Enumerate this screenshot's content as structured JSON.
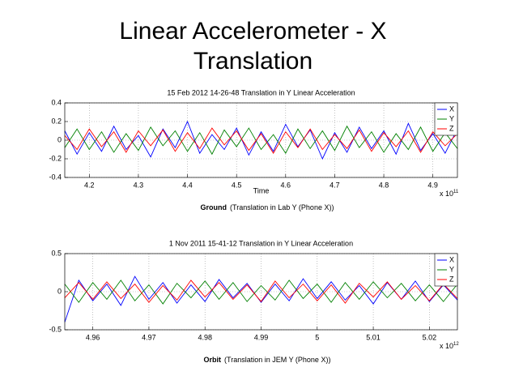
{
  "title": "Linear Accelerometer - X Translation",
  "chart_data": [
    {
      "type": "line",
      "title": "15 Feb 2012 14-26-48 Translation in Y Linear Acceleration",
      "xlabel": "Time",
      "x_multiplier": "x 10",
      "x_exponent": 11,
      "caption": {
        "bold": "Ground",
        "text": "(Translation in Lab Y (Phone X))"
      },
      "x": [
        4.15,
        4.175,
        4.2,
        4.225,
        4.25,
        4.275,
        4.3,
        4.325,
        4.35,
        4.375,
        4.4,
        4.425,
        4.45,
        4.475,
        4.5,
        4.525,
        4.55,
        4.575,
        4.6,
        4.625,
        4.65,
        4.675,
        4.7,
        4.725,
        4.75,
        4.775,
        4.8,
        4.825,
        4.85,
        4.875,
        4.9,
        4.925,
        4.95
      ],
      "series": [
        {
          "name": "X",
          "color": "#0000ff",
          "values": [
            0.1,
            -0.15,
            0.08,
            -0.12,
            0.15,
            -0.1,
            0.05,
            -0.18,
            0.12,
            -0.08,
            0.2,
            -0.14,
            0.06,
            -0.1,
            0.13,
            -0.16,
            0.09,
            -0.12,
            0.17,
            -0.07,
            0.11,
            -0.2,
            0.08,
            -0.13,
            0.14,
            -0.09,
            0.1,
            -0.15,
            0.18,
            -0.11,
            0.07,
            -0.14,
            0.12
          ]
        },
        {
          "name": "Y",
          "color": "#008000",
          "values": [
            -0.08,
            0.12,
            -0.1,
            0.09,
            -0.13,
            0.07,
            -0.11,
            0.14,
            -0.06,
            0.1,
            -0.12,
            0.08,
            -0.15,
            0.11,
            -0.07,
            0.13,
            -0.1,
            0.06,
            -0.14,
            0.12,
            -0.09,
            0.1,
            -0.11,
            0.15,
            -0.08,
            0.09,
            -0.13,
            0.07,
            -0.1,
            0.14,
            -0.12,
            0.08,
            -0.09
          ]
        },
        {
          "name": "Z",
          "color": "#ff0000",
          "values": [
            0.05,
            -0.1,
            0.12,
            -0.07,
            0.09,
            -0.13,
            0.1,
            -0.06,
            0.11,
            -0.12,
            0.08,
            -0.09,
            0.13,
            -0.05,
            0.1,
            -0.11,
            0.07,
            -0.14,
            0.09,
            -0.08,
            0.12,
            -0.1,
            0.06,
            -0.09,
            0.11,
            -0.12,
            0.08,
            -0.07,
            0.1,
            -0.13,
            0.09,
            -0.06,
            0.07
          ]
        }
      ],
      "xlim": [
        4.15,
        4.95
      ],
      "xticks": [
        4.2,
        4.3,
        4.4,
        4.5,
        4.6,
        4.7,
        4.8,
        4.9
      ],
      "ylim": [
        -0.4,
        0.4
      ],
      "yticks": [
        -0.4,
        -0.2,
        0,
        0.2,
        0.4
      ],
      "grid": true,
      "legend": "upper right"
    },
    {
      "type": "line",
      "title": "1 Nov 2011 15-41-12 Translation in Y Linear Acceleration",
      "x_multiplier": "x 10",
      "x_exponent": 12,
      "caption": {
        "bold": "Orbit",
        "text": "(Translation in JEM Y (Phone X))"
      },
      "x": [
        4.955,
        4.9575,
        4.96,
        4.9625,
        4.965,
        4.9675,
        4.97,
        4.9725,
        4.975,
        4.9775,
        4.98,
        4.9825,
        4.985,
        4.9875,
        4.99,
        4.9925,
        4.995,
        4.9975,
        5,
        5.0025,
        5.005,
        5.0075,
        5.01,
        5.0125,
        5.015,
        5.0175,
        5.02,
        5.0225,
        5.025
      ],
      "series": [
        {
          "name": "X",
          "color": "#0000ff",
          "values": [
            -0.4,
            0.15,
            -0.12,
            0.1,
            -0.18,
            0.2,
            -0.1,
            0.12,
            -0.15,
            0.09,
            -0.13,
            0.16,
            -0.08,
            0.11,
            -0.14,
            0.1,
            -0.12,
            0.17,
            -0.09,
            0.13,
            -0.11,
            0.08,
            -0.16,
            0.12,
            -0.1,
            0.14,
            -0.13,
            0.09,
            -0.11
          ]
        },
        {
          "name": "Y",
          "color": "#008000",
          "values": [
            0.1,
            -0.14,
            0.12,
            -0.1,
            0.15,
            -0.12,
            0.09,
            -0.16,
            0.11,
            -0.08,
            0.14,
            -0.1,
            0.12,
            -0.13,
            0.08,
            -0.11,
            0.15,
            -0.09,
            0.1,
            -0.14,
            0.12,
            -0.1,
            0.13,
            -0.08,
            0.11,
            -0.12,
            0.09,
            -0.13,
            0.1
          ]
        },
        {
          "name": "Z",
          "color": "#ff0000",
          "values": [
            -0.08,
            0.12,
            -0.1,
            0.13,
            -0.09,
            0.1,
            -0.14,
            0.08,
            -0.11,
            0.15,
            -0.07,
            0.12,
            -0.1,
            0.09,
            -0.13,
            0.14,
            -0.08,
            0.1,
            -0.12,
            0.09,
            -0.15,
            0.11,
            -0.07,
            0.13,
            -0.1,
            0.08,
            -0.12,
            0.1,
            -0.09
          ]
        }
      ],
      "xlim": [
        4.955,
        5.025
      ],
      "xticks": [
        4.96,
        4.97,
        4.98,
        4.99,
        5,
        5.01,
        5.02
      ],
      "ylim": [
        -0.5,
        0.5
      ],
      "yticks": [
        -0.5,
        0,
        0.5
      ],
      "grid": true,
      "legend": "upper right"
    }
  ]
}
